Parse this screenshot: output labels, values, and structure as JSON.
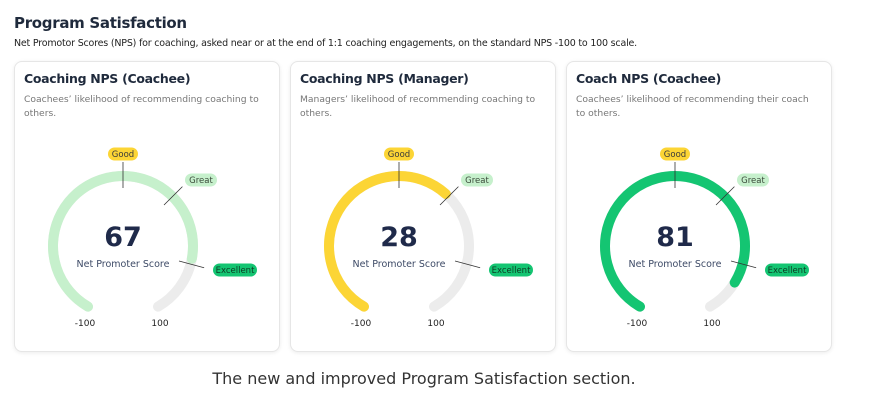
{
  "header": {
    "title": "Program Satisfaction",
    "subtitle": "Net Promotor Scores (NPS) for coaching, asked near or at the end of 1:1 coaching engagements, on the standard NPS -100 to 100 scale."
  },
  "scale": {
    "min": -100,
    "max": 100,
    "min_label": "-100",
    "max_label": "100",
    "center_label": "Net Promoter Score"
  },
  "thresholds": [
    {
      "label": "Good",
      "value": 0,
      "color": "#fcd535",
      "text": "#3a3a3a"
    },
    {
      "label": "Great",
      "value": 30,
      "color": "#c6f0cc",
      "text": "#3a4a3a"
    },
    {
      "label": "Excellent",
      "value": 70,
      "color": "#14c572",
      "text": "#0d3b24"
    }
  ],
  "cards": [
    {
      "title": "Coaching NPS (Coachee)",
      "description": "Coachees’ likelihood of recommending coaching to others.",
      "value": 67,
      "value_text": "67",
      "color": "#c6f0cc"
    },
    {
      "title": "Coaching NPS (Manager)",
      "description": "Managers’ likelihood of recommending coaching to others.",
      "value": 28,
      "value_text": "28",
      "color": "#fcd535"
    },
    {
      "title": "Coach NPS (Coachee)",
      "description": "Coachees’ likelihood of recommending their coach to others.",
      "value": 81,
      "value_text": "81",
      "color": "#14c572"
    }
  ],
  "caption": "The new and improved Program Satisfaction section."
}
